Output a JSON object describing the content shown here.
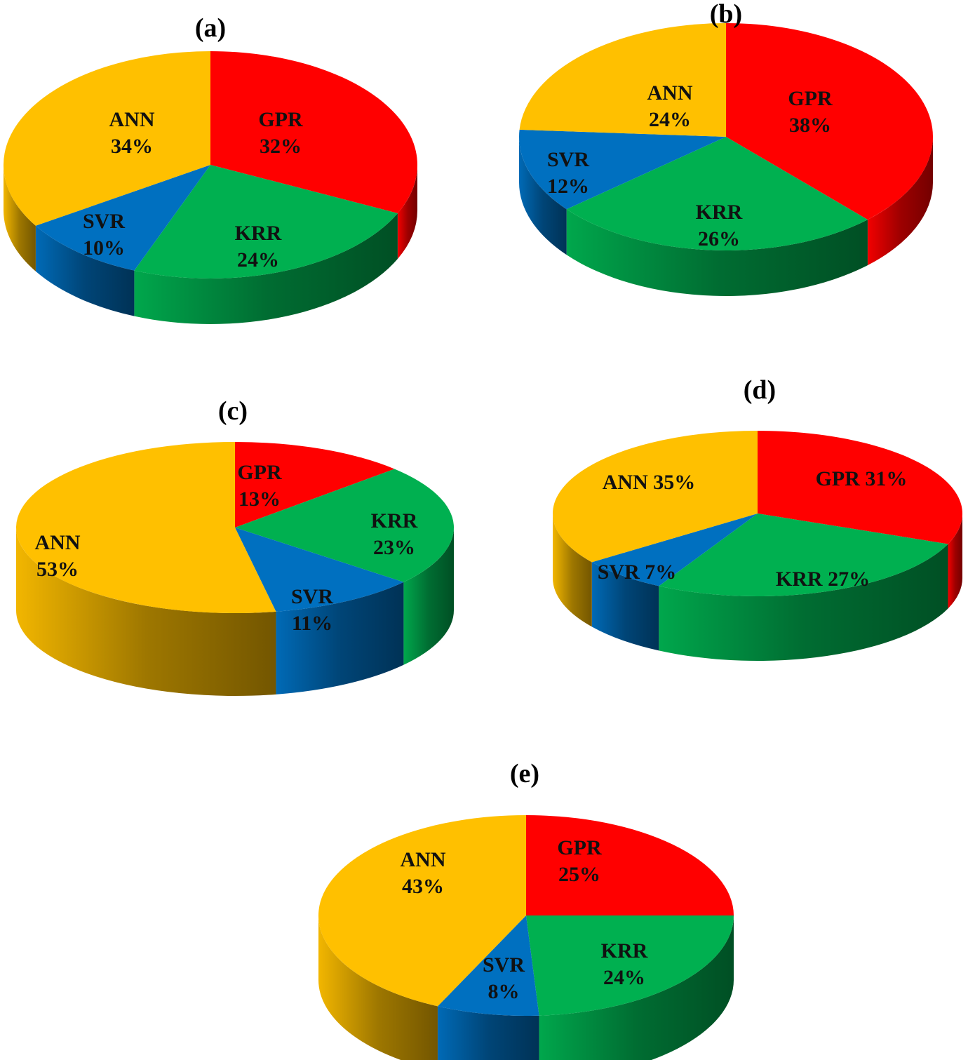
{
  "colors": {
    "GPR": "#ff0000",
    "KRR": "#00b050",
    "SVR": "#0070c0",
    "ANN": "#ffc000"
  },
  "chart_data": [
    {
      "type": "pie",
      "title": "(a)",
      "categories": [
        "GPR",
        "KRR",
        "SVR",
        "ANN"
      ],
      "values": [
        32,
        24,
        10,
        34
      ],
      "labels": [
        [
          "GPR",
          "32%"
        ],
        [
          "KRR",
          "24%"
        ],
        [
          "SVR",
          "10%"
        ],
        [
          "ANN",
          "34%"
        ]
      ]
    },
    {
      "type": "pie",
      "title": "(b)",
      "categories": [
        "GPR",
        "KRR",
        "SVR",
        "ANN"
      ],
      "values": [
        38,
        26,
        12,
        24
      ],
      "labels": [
        [
          "GPR",
          "38%"
        ],
        [
          "KRR",
          "26%"
        ],
        [
          "SVR",
          "12%"
        ],
        [
          "ANN",
          "24%"
        ]
      ]
    },
    {
      "type": "pie",
      "title": "(c)",
      "categories": [
        "GPR",
        "KRR",
        "SVR",
        "ANN"
      ],
      "values": [
        13,
        23,
        11,
        53
      ],
      "labels": [
        [
          "GPR",
          "13%"
        ],
        [
          "KRR",
          "23%"
        ],
        [
          "SVR",
          "11%"
        ],
        [
          "ANN",
          "53%"
        ]
      ]
    },
    {
      "type": "pie",
      "title": "(d)",
      "categories": [
        "GPR",
        "KRR",
        "SVR",
        "ANN"
      ],
      "values": [
        31,
        27,
        7,
        35
      ],
      "labels": [
        [
          "GPR 31%"
        ],
        [
          "KRR 27%"
        ],
        [
          "SVR 7%"
        ],
        [
          "ANN 35%"
        ]
      ]
    },
    {
      "type": "pie",
      "title": "(e)",
      "categories": [
        "GPR",
        "KRR",
        "SVR",
        "ANN"
      ],
      "values": [
        25,
        24,
        8,
        43
      ],
      "labels": [
        [
          "GPR",
          "25%"
        ],
        [
          "KRR",
          "24%"
        ],
        [
          "SVR",
          "8%"
        ],
        [
          "ANN",
          "43%"
        ]
      ]
    }
  ]
}
